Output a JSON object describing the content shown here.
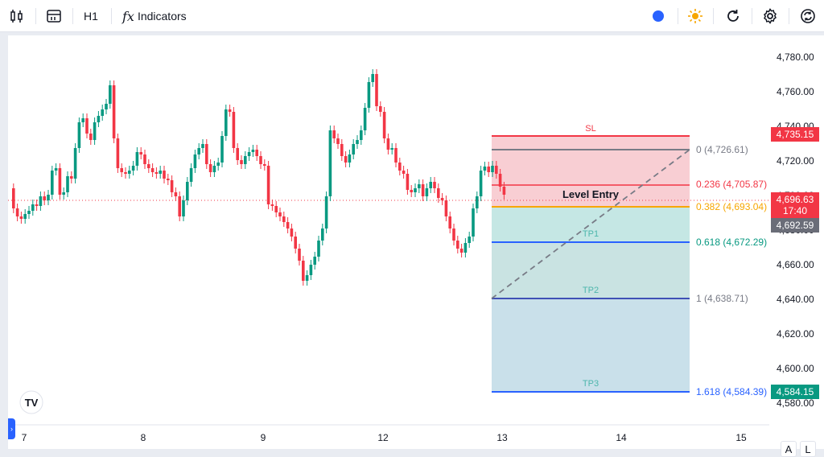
{
  "toolbar": {
    "interval": "H1",
    "indicators_label": "Indicators",
    "fx_glyph": "fx",
    "icons": [
      "candles-icon",
      "chart-layout-icon",
      "indicators-icon",
      "color-dot-icon",
      "sun-icon",
      "refresh-icon",
      "settings-icon",
      "sync-icon"
    ],
    "dot_color": "#2962ff",
    "sun_color": "#f7a600"
  },
  "chart": {
    "price_axis": [
      "4,780.00",
      "4,760.00",
      "4,740.00",
      "4,720.00",
      "4,700.00",
      "4,680.00",
      "4,660.00",
      "4,640.00",
      "4,620.00",
      "4,600.00",
      "4,580.00"
    ],
    "time_axis": [
      "7",
      "8",
      "9",
      "12",
      "13",
      "14",
      "15"
    ],
    "price_badges": {
      "sl": "4,735.15",
      "current": "4,696.63",
      "countdown": "17:40",
      "marker": "4,692.59",
      "tp3": "4,584.15"
    },
    "colors": {
      "up": "#089981",
      "down": "#f23645",
      "sl_zone": "#f7c6cb",
      "tp_zone": "#b2dfdb",
      "tp3_zone": "#c3dde8"
    },
    "fib_levels": [
      {
        "ratio": "0",
        "label": "0 (4,726.61)",
        "color": "#787b86"
      },
      {
        "ratio": "0.236",
        "label": "0.236 (4,705.87)",
        "color": "#f23645"
      },
      {
        "ratio": "0.382",
        "label": "0.382 (4,693.04)",
        "color": "#f7a600"
      },
      {
        "ratio": "0.618",
        "label": "0.618 (4,672.29)",
        "color": "#089981"
      },
      {
        "ratio": "1",
        "label": "1 (4,638.71)",
        "color": "#787b86"
      },
      {
        "ratio": "1.618",
        "label": "1.618 (4,584.39)",
        "color": "#2962ff"
      }
    ],
    "zone_labels": {
      "sl": "SL",
      "entry": "Level Entry",
      "tp1": "TP1",
      "tp2": "TP2",
      "tp3": "TP3"
    },
    "logo": "TV",
    "scale_buttons": [
      "A",
      "L"
    ]
  }
}
